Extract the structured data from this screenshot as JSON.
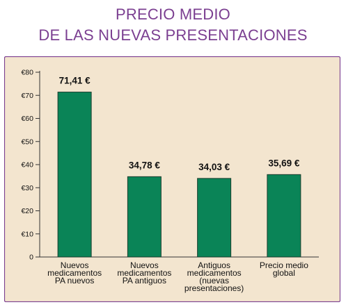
{
  "title_lines": [
    "PRECIO MEDIO",
    "DE LAS NUEVAS PRESENTACIONES"
  ],
  "colors": {
    "title": "#7b3f91",
    "panel_background": "#f3e5cf",
    "panel_border": "#7b3f91",
    "bar": "#0a8457",
    "bar_border": "#1c3d2e",
    "axis": "#333333",
    "text": "#111111"
  },
  "chart_data": {
    "type": "bar",
    "title": "PRECIO MEDIO DE LAS NUEVAS PRESENTACIONES",
    "xlabel": "",
    "ylabel": "",
    "categories": [
      [
        "Nuevos",
        "medicamentos",
        "PA nuevos"
      ],
      [
        "Nuevos",
        "medicamentos",
        "PA antiguos"
      ],
      [
        "Antiguos",
        "medicamentos",
        "(nuevas",
        "presentaciones)"
      ],
      [
        "Precio medio",
        "global"
      ]
    ],
    "values": [
      71.41,
      34.78,
      34.03,
      35.69
    ],
    "data_labels": [
      "71,41 €",
      "34,78 €",
      "34,03 €",
      "35,69 €"
    ],
    "ylim": [
      0,
      80
    ],
    "yticks": [
      0,
      10,
      20,
      30,
      40,
      50,
      60,
      70,
      80
    ],
    "ytick_labels": [
      "0",
      "€10",
      "€20",
      "€30",
      "€40",
      "€50",
      "€60",
      "€70",
      "€80"
    ],
    "grid": false,
    "legend": "none"
  }
}
